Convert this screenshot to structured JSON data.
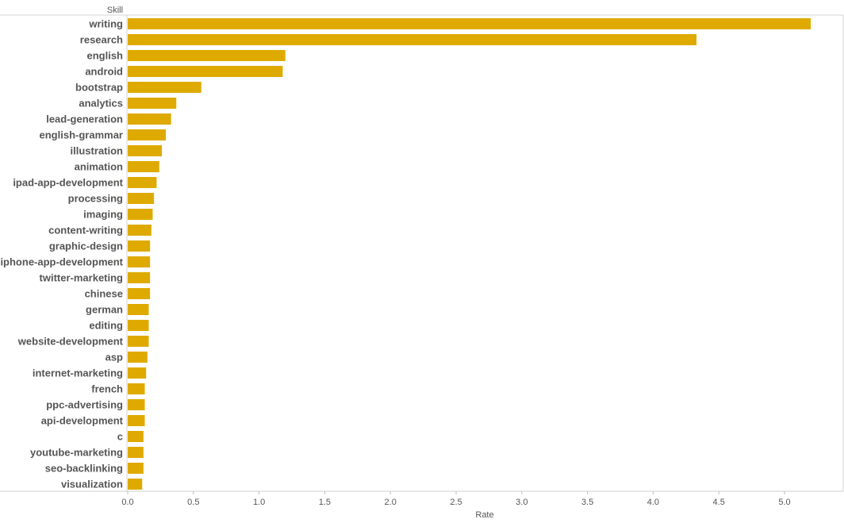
{
  "chart_data": {
    "type": "bar",
    "orientation": "horizontal",
    "ylabel": "Skill",
    "xlabel": "Rate",
    "xlim": [
      0,
      5.4
    ],
    "xticks": [
      "0.0",
      "0.5",
      "1.0",
      "1.5",
      "2.0",
      "2.5",
      "3.0",
      "3.5",
      "4.0",
      "4.5",
      "5.0"
    ],
    "xtick_values": [
      0,
      0.5,
      1.0,
      1.5,
      2.0,
      2.5,
      3.0,
      3.5,
      4.0,
      4.5,
      5.0
    ],
    "bar_color": "#DEAA00",
    "categories": [
      "writing",
      "research",
      "english",
      "android",
      "bootstrap",
      "analytics",
      "lead-generation",
      "english-grammar",
      "illustration",
      "animation",
      "ipad-app-development",
      "processing",
      "imaging",
      "content-writing",
      "graphic-design",
      "iphone-app-development",
      "twitter-marketing",
      "chinese",
      "german",
      "editing",
      "website-development",
      "asp",
      "internet-marketing",
      "french",
      "ppc-advertising",
      "api-development",
      "c",
      "youtube-marketing",
      "seo-backlinking",
      "visualization"
    ],
    "values": [
      5.2,
      4.33,
      1.2,
      1.18,
      0.56,
      0.37,
      0.33,
      0.29,
      0.26,
      0.24,
      0.22,
      0.2,
      0.19,
      0.18,
      0.17,
      0.17,
      0.17,
      0.17,
      0.16,
      0.16,
      0.16,
      0.15,
      0.14,
      0.13,
      0.13,
      0.13,
      0.12,
      0.12,
      0.12,
      0.11
    ]
  }
}
